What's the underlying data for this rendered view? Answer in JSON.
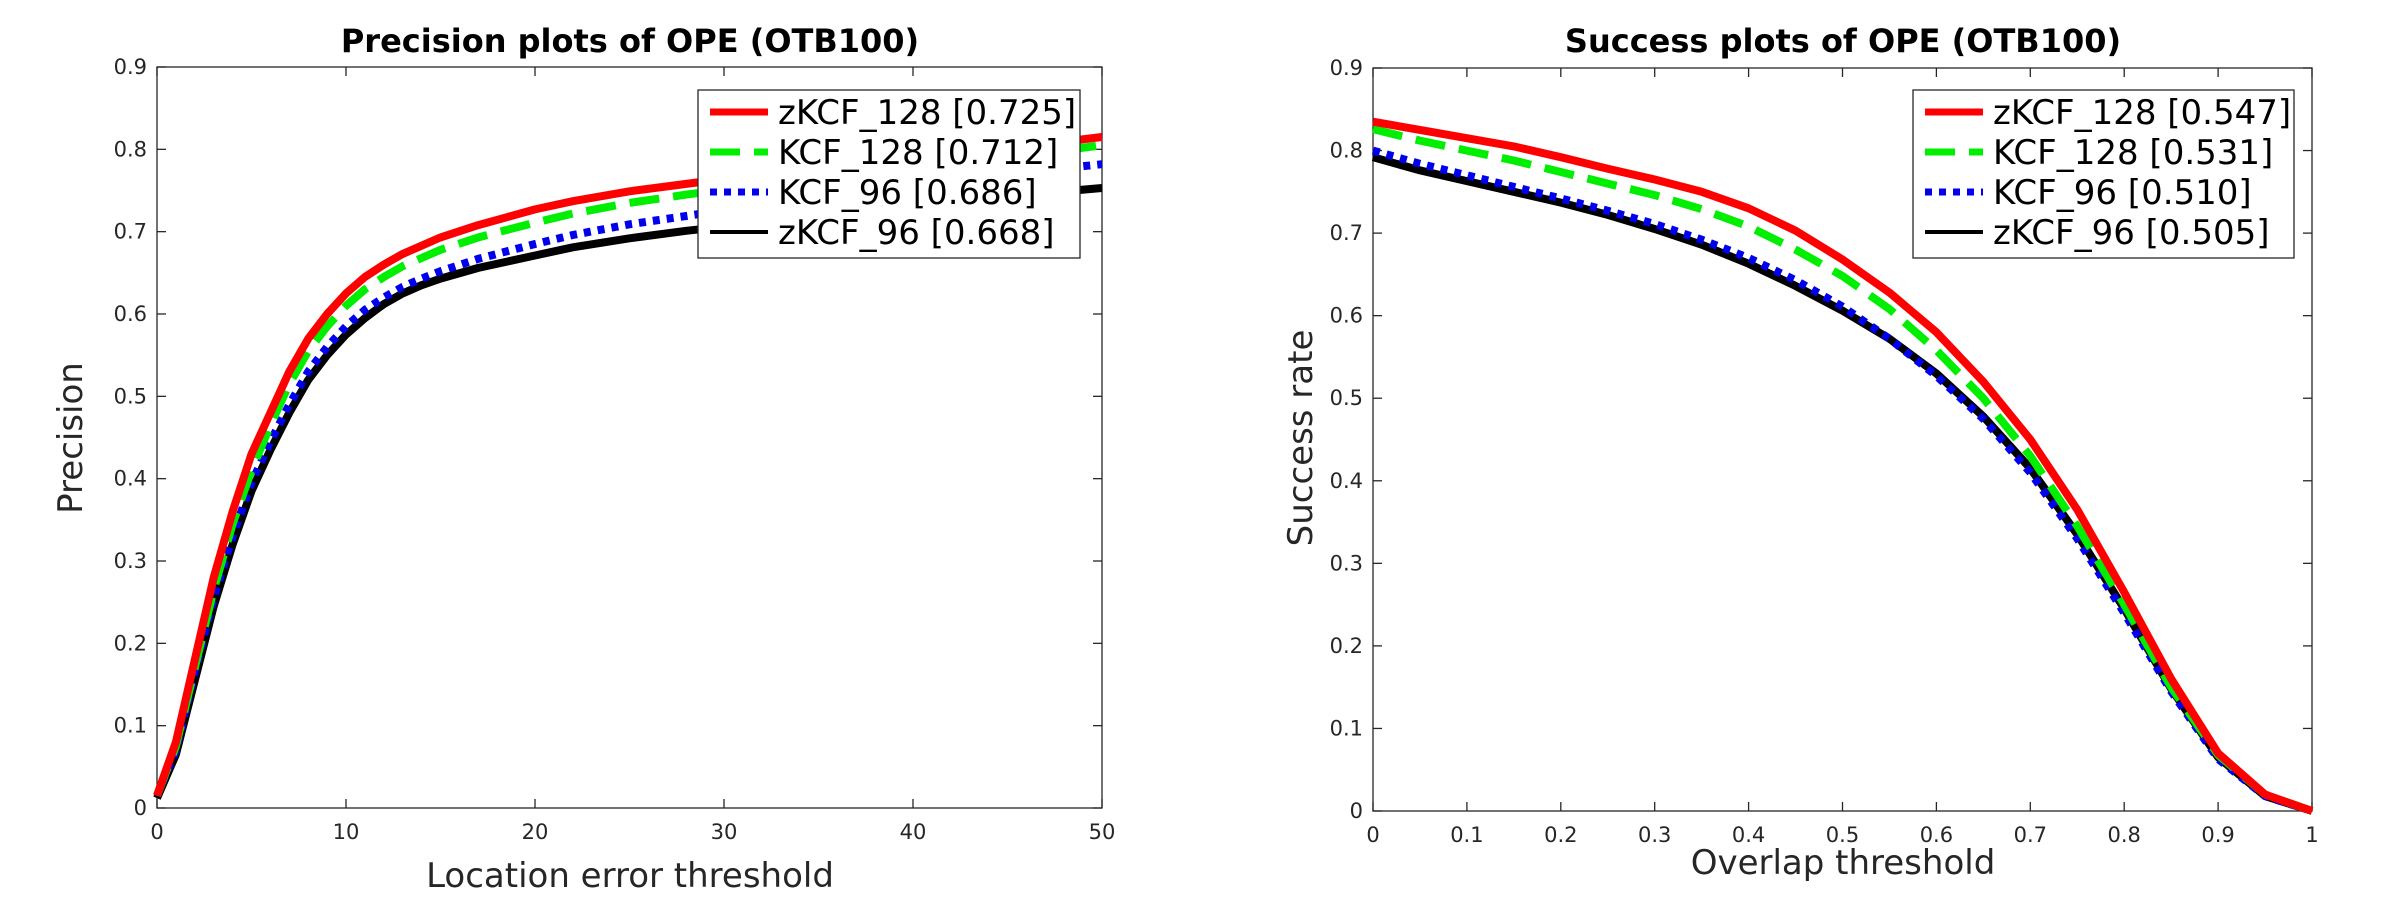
{
  "chart_data": [
    {
      "type": "line",
      "title": "Precision plots of OPE (OTB100)",
      "xlabel": "Location error threshold",
      "ylabel": "Precision",
      "xlim": [
        0,
        50
      ],
      "ylim": [
        0,
        0.9
      ],
      "xticks": [
        "0",
        "10",
        "20",
        "30",
        "40",
        "50"
      ],
      "yticks": [
        "0",
        "0.1",
        "0.2",
        "0.3",
        "0.4",
        "0.5",
        "0.6",
        "0.7",
        "0.8",
        "0.9"
      ],
      "legend_position": "top-right",
      "grid": false,
      "x": [
        0,
        1,
        2,
        3,
        4,
        5,
        6,
        7,
        8,
        9,
        10,
        11,
        12,
        13,
        14,
        15,
        17,
        20,
        22,
        25,
        28,
        30,
        35,
        40,
        45,
        50
      ],
      "series": [
        {
          "name": "zKCF_128 [0.725]",
          "color": "#ff0000",
          "style": "solid",
          "values": [
            0.015,
            0.08,
            0.18,
            0.28,
            0.36,
            0.43,
            0.48,
            0.53,
            0.57,
            0.6,
            0.625,
            0.645,
            0.66,
            0.673,
            0.683,
            0.693,
            0.708,
            0.727,
            0.737,
            0.749,
            0.758,
            0.764,
            0.776,
            0.789,
            0.801,
            0.815
          ]
        },
        {
          "name": "KCF_128 [0.712]",
          "color": "#00ee00",
          "style": "dashed",
          "values": [
            0.015,
            0.075,
            0.17,
            0.265,
            0.345,
            0.41,
            0.465,
            0.515,
            0.555,
            0.585,
            0.61,
            0.63,
            0.645,
            0.658,
            0.668,
            0.678,
            0.693,
            0.711,
            0.722,
            0.735,
            0.745,
            0.751,
            0.765,
            0.778,
            0.79,
            0.805
          ]
        },
        {
          "name": "KCF_96 [0.686]",
          "color": "#0000ee",
          "style": "dotted",
          "values": [
            0.015,
            0.07,
            0.165,
            0.255,
            0.33,
            0.395,
            0.445,
            0.49,
            0.53,
            0.56,
            0.585,
            0.605,
            0.62,
            0.633,
            0.643,
            0.652,
            0.667,
            0.685,
            0.696,
            0.709,
            0.719,
            0.726,
            0.742,
            0.757,
            0.77,
            0.782
          ]
        },
        {
          "name": "zKCF_96 [0.668]",
          "color": "#000000",
          "style": "solid",
          "values": [
            0.012,
            0.065,
            0.155,
            0.245,
            0.32,
            0.385,
            0.435,
            0.48,
            0.52,
            0.55,
            0.575,
            0.595,
            0.612,
            0.625,
            0.635,
            0.643,
            0.656,
            0.671,
            0.681,
            0.692,
            0.701,
            0.706,
            0.718,
            0.731,
            0.743,
            0.753
          ]
        }
      ]
    },
    {
      "type": "line",
      "title": "Success plots of OPE (OTB100)",
      "xlabel": "Overlap threshold",
      "ylabel": "Success rate",
      "xlim": [
        0,
        1
      ],
      "ylim": [
        0,
        0.9
      ],
      "xticks": [
        "0",
        "0.1",
        "0.2",
        "0.3",
        "0.4",
        "0.5",
        "0.6",
        "0.7",
        "0.8",
        "0.9",
        "1"
      ],
      "yticks": [
        "0",
        "0.1",
        "0.2",
        "0.3",
        "0.4",
        "0.5",
        "0.6",
        "0.7",
        "0.8",
        "0.9"
      ],
      "legend_position": "top-right",
      "grid": false,
      "x": [
        0,
        0.05,
        0.1,
        0.15,
        0.2,
        0.25,
        0.3,
        0.35,
        0.4,
        0.45,
        0.5,
        0.55,
        0.6,
        0.65,
        0.7,
        0.75,
        0.8,
        0.85,
        0.9,
        0.95,
        1.0
      ],
      "series": [
        {
          "name": "zKCF_128 [0.547]",
          "color": "#ff0000",
          "style": "solid",
          "values": [
            0.835,
            0.825,
            0.815,
            0.805,
            0.792,
            0.778,
            0.765,
            0.75,
            0.73,
            0.703,
            0.668,
            0.628,
            0.58,
            0.52,
            0.45,
            0.365,
            0.265,
            0.16,
            0.07,
            0.02,
            0.0
          ]
        },
        {
          "name": "KCF_128 [0.531]",
          "color": "#00ee00",
          "style": "dashed",
          "values": [
            0.826,
            0.812,
            0.8,
            0.788,
            0.774,
            0.76,
            0.746,
            0.729,
            0.708,
            0.68,
            0.648,
            0.608,
            0.558,
            0.5,
            0.43,
            0.345,
            0.25,
            0.15,
            0.068,
            0.02,
            0.0
          ]
        },
        {
          "name": "KCF_96 [0.510]",
          "color": "#0000ee",
          "style": "dotted",
          "values": [
            0.8,
            0.784,
            0.77,
            0.756,
            0.742,
            0.727,
            0.711,
            0.692,
            0.67,
            0.643,
            0.611,
            0.572,
            0.527,
            0.475,
            0.41,
            0.33,
            0.24,
            0.145,
            0.063,
            0.018,
            0.0
          ]
        },
        {
          "name": "zKCF_96 [0.505]",
          "color": "#000000",
          "style": "solid",
          "values": [
            0.792,
            0.776,
            0.763,
            0.75,
            0.737,
            0.722,
            0.705,
            0.686,
            0.663,
            0.636,
            0.606,
            0.572,
            0.53,
            0.478,
            0.415,
            0.335,
            0.245,
            0.148,
            0.065,
            0.018,
            0.0
          ]
        }
      ]
    }
  ]
}
